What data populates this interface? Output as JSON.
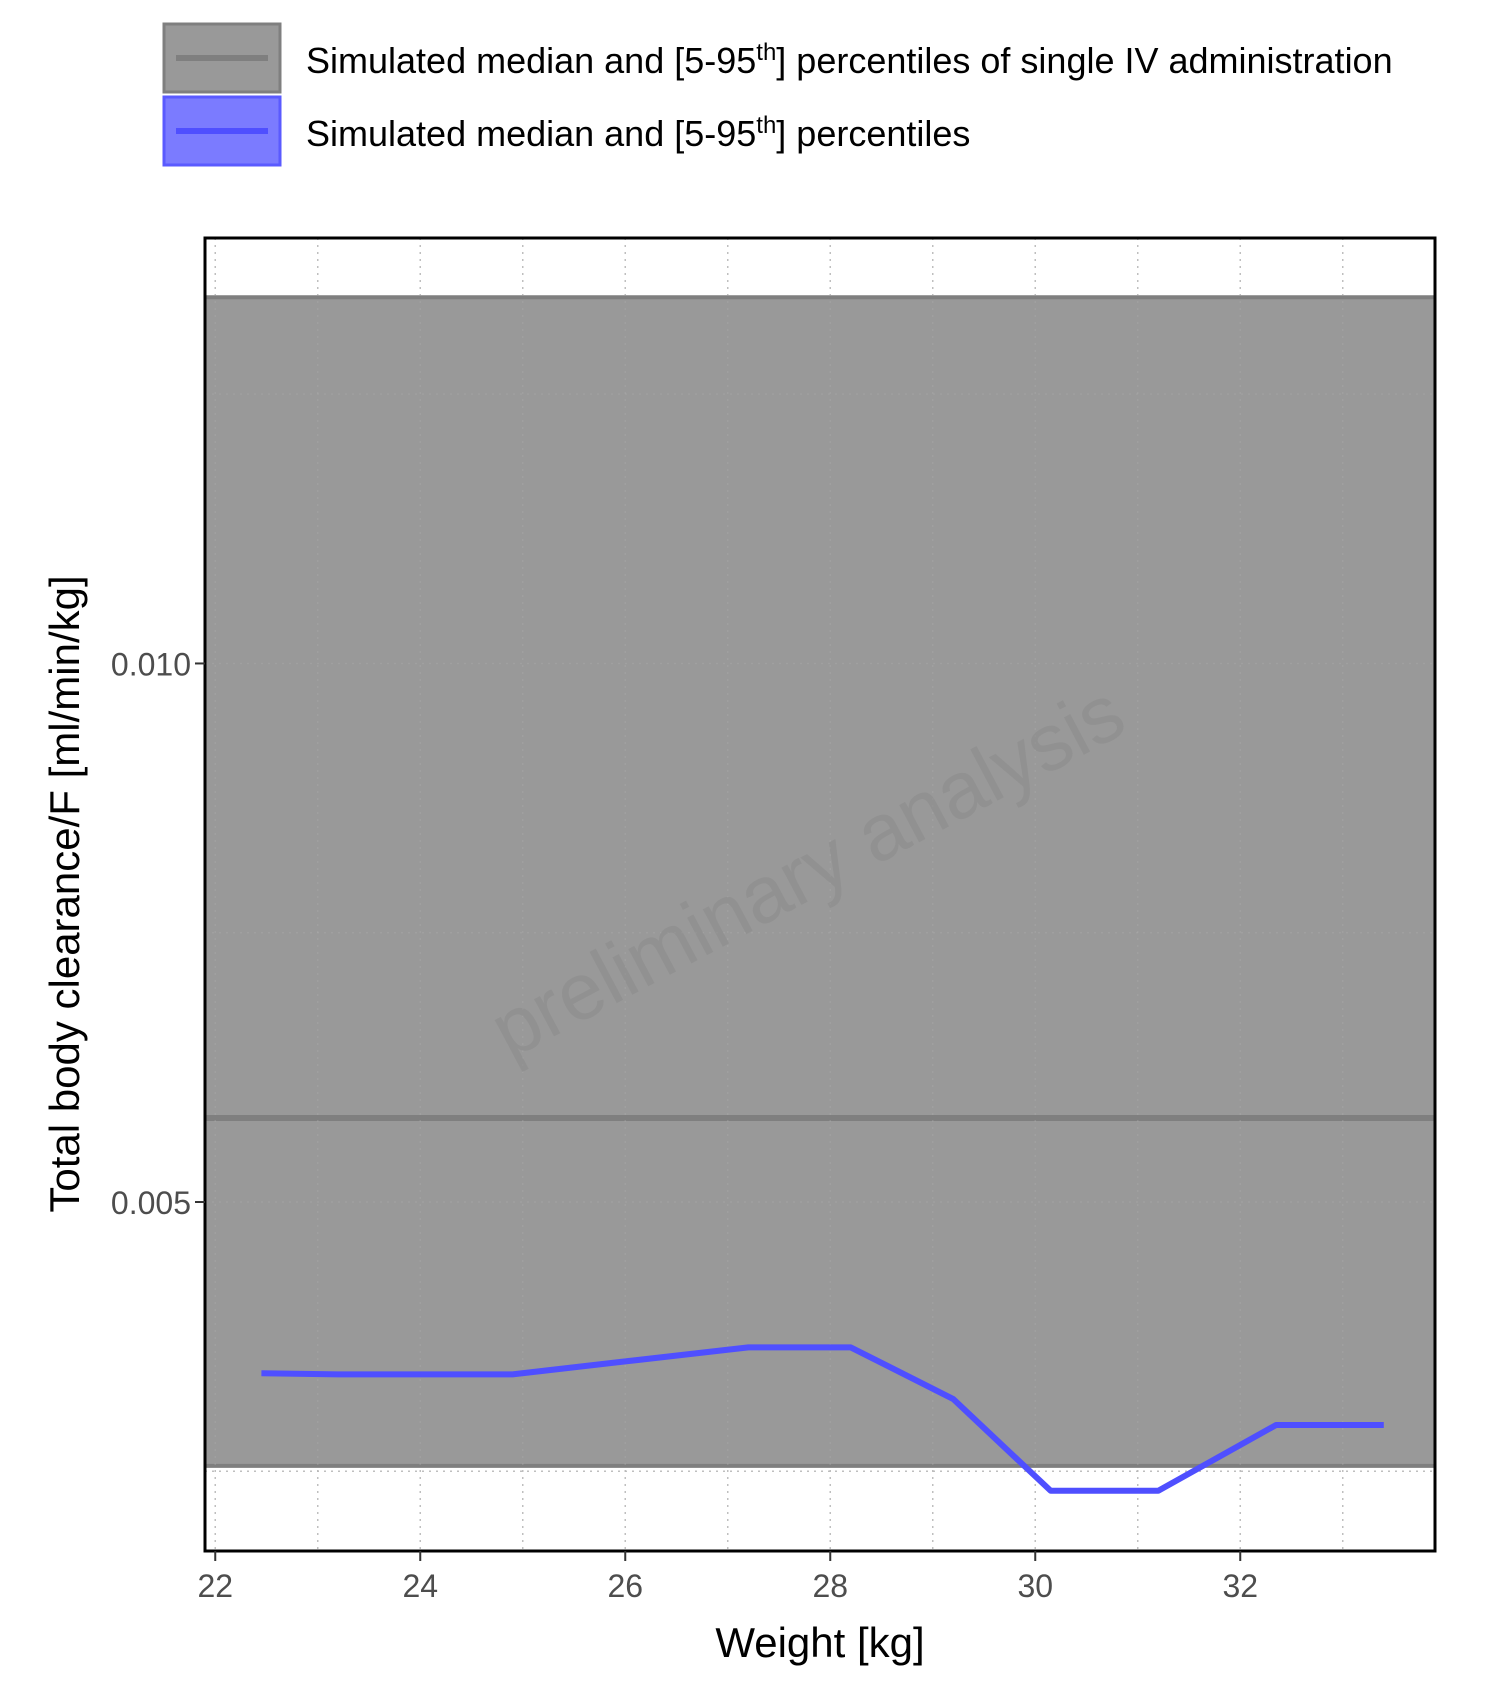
{
  "chart_data": {
    "type": "line",
    "legend": {
      "position": "top",
      "entries": [
        {
          "prefix": "Simulated median and [5-95",
          "sup": "th",
          "suffix": "] percentiles of single IV administration",
          "line_color": "#7f7f7f",
          "fill_color": "#7f7f7f"
        },
        {
          "prefix": "Simulated median and [5-95",
          "sup": "th",
          "suffix": "] percentiles",
          "line_color": "#4f4fff",
          "fill_color": "#5a5aff"
        }
      ]
    },
    "xlabel": "Weight [kg]",
    "ylabel": "Total body clearance/F [ml/min/kg]",
    "xlim": [
      21.9,
      33.9
    ],
    "ylim": [
      0.00176,
      0.01395
    ],
    "x_ticks": [
      22,
      24,
      26,
      28,
      30,
      32
    ],
    "x_tick_labels": [
      "22",
      "24",
      "26",
      "28",
      "30",
      "32"
    ],
    "y_ticks": [
      0.005,
      0.01
    ],
    "y_tick_labels": [
      "0.005",
      "0.010"
    ],
    "grid": true,
    "watermark": "preliminary analysis",
    "reference_band": {
      "name": "Simulated median and [5-95th] percentiles of single IV administration",
      "median": 0.00578,
      "lower": 0.00255,
      "upper": 0.0134,
      "color": "#999999",
      "line_color": "#7f7f7f"
    },
    "series": [
      {
        "name": "Simulated median and [5-95th] percentiles",
        "color": "#4f4fff",
        "x": [
          22.45,
          23.2,
          24.9,
          26.0,
          27.2,
          28.2,
          29.2,
          30.15,
          31.2,
          32.35,
          33.4
        ],
        "y": [
          0.00341,
          0.0034,
          0.0034,
          0.00352,
          0.00365,
          0.00365,
          0.00317,
          0.00232,
          0.00232,
          0.00293,
          0.00293
        ]
      }
    ]
  }
}
